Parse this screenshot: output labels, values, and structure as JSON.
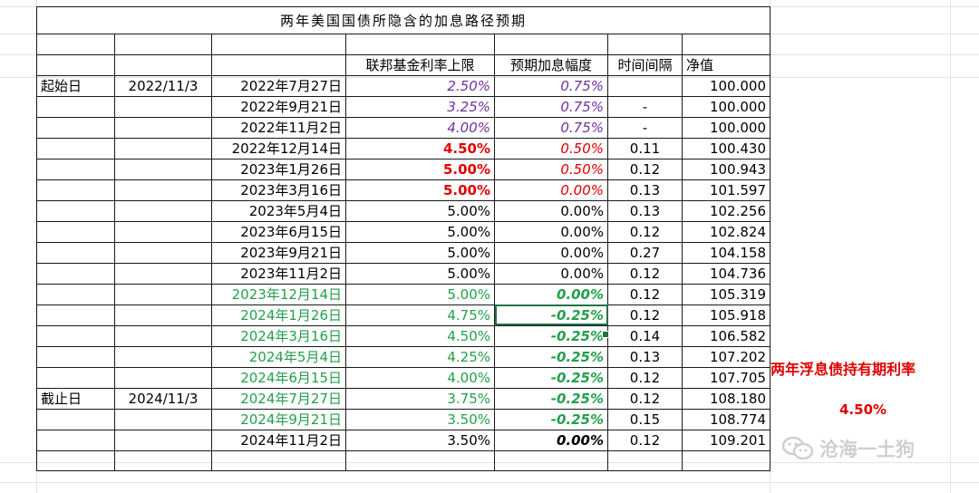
{
  "sheet": {
    "title": "两年美国国债所隐含的加息路径预期",
    "headers": {
      "rate_cap": "联邦基金利率上限",
      "hike": "预期加息幅度",
      "interval": "时间间隔",
      "nav": "净值"
    },
    "start": {
      "label": "起始日",
      "date": "2022/11/3"
    },
    "end": {
      "label": "截止日",
      "date": "2024/11/3"
    },
    "rows": [
      {
        "date": "2022年7月27日",
        "rate": "2.50%",
        "hike": "0.75%",
        "interval": "",
        "nav": "100.000"
      },
      {
        "date": "2022年9月21日",
        "rate": "3.25%",
        "hike": "0.75%",
        "interval": "-",
        "nav": "100.000"
      },
      {
        "date": "2022年11月2日",
        "rate": "4.00%",
        "hike": "0.75%",
        "interval": "-",
        "nav": "100.000"
      },
      {
        "date": "2022年12月14日",
        "rate": "4.50%",
        "hike": "0.50%",
        "interval": "0.11",
        "nav": "100.430"
      },
      {
        "date": "2023年1月26日",
        "rate": "5.00%",
        "hike": "0.50%",
        "interval": "0.12",
        "nav": "100.943"
      },
      {
        "date": "2023年3月16日",
        "rate": "5.00%",
        "hike": "0.00%",
        "interval": "0.13",
        "nav": "101.597"
      },
      {
        "date": "2023年5月4日",
        "rate": "5.00%",
        "hike": "0.00%",
        "interval": "0.13",
        "nav": "102.256"
      },
      {
        "date": "2023年6月15日",
        "rate": "5.00%",
        "hike": "0.00%",
        "interval": "0.12",
        "nav": "102.824"
      },
      {
        "date": "2023年9月21日",
        "rate": "5.00%",
        "hike": "0.00%",
        "interval": "0.27",
        "nav": "104.158"
      },
      {
        "date": "2023年11月2日",
        "rate": "5.00%",
        "hike": "0.00%",
        "interval": "0.12",
        "nav": "104.736"
      },
      {
        "date": "2023年12月14日",
        "rate": "5.00%",
        "hike": "0.00%",
        "interval": "0.12",
        "nav": "105.319"
      },
      {
        "date": "2024年1月26日",
        "rate": "4.75%",
        "hike": "-0.25%",
        "interval": "0.12",
        "nav": "105.918"
      },
      {
        "date": "2024年3月16日",
        "rate": "4.50%",
        "hike": "-0.25%",
        "interval": "0.14",
        "nav": "106.582"
      },
      {
        "date": "2024年5月4日",
        "rate": "4.25%",
        "hike": "-0.25%",
        "interval": "0.13",
        "nav": "107.202"
      },
      {
        "date": "2024年6月15日",
        "rate": "4.00%",
        "hike": "-0.25%",
        "interval": "0.12",
        "nav": "107.705"
      },
      {
        "date": "2024年7月27日",
        "rate": "3.75%",
        "hike": "-0.25%",
        "interval": "0.12",
        "nav": "108.180"
      },
      {
        "date": "2024年9月21日",
        "rate": "3.50%",
        "hike": "-0.25%",
        "interval": "0.15",
        "nav": "108.774"
      },
      {
        "date": "2024年11月2日",
        "rate": "3.50%",
        "hike": "0.00%",
        "interval": "0.12",
        "nav": "109.201"
      }
    ]
  },
  "side": {
    "label": "两年浮息债持有期利率",
    "value": "4.50%"
  },
  "watermark": {
    "text": "沧海一土狗",
    "icon": "wechat-icon"
  },
  "colors": {
    "purple": "#7030a0",
    "red": "#e00000",
    "green": "#22a04a",
    "selection": "#217346"
  }
}
